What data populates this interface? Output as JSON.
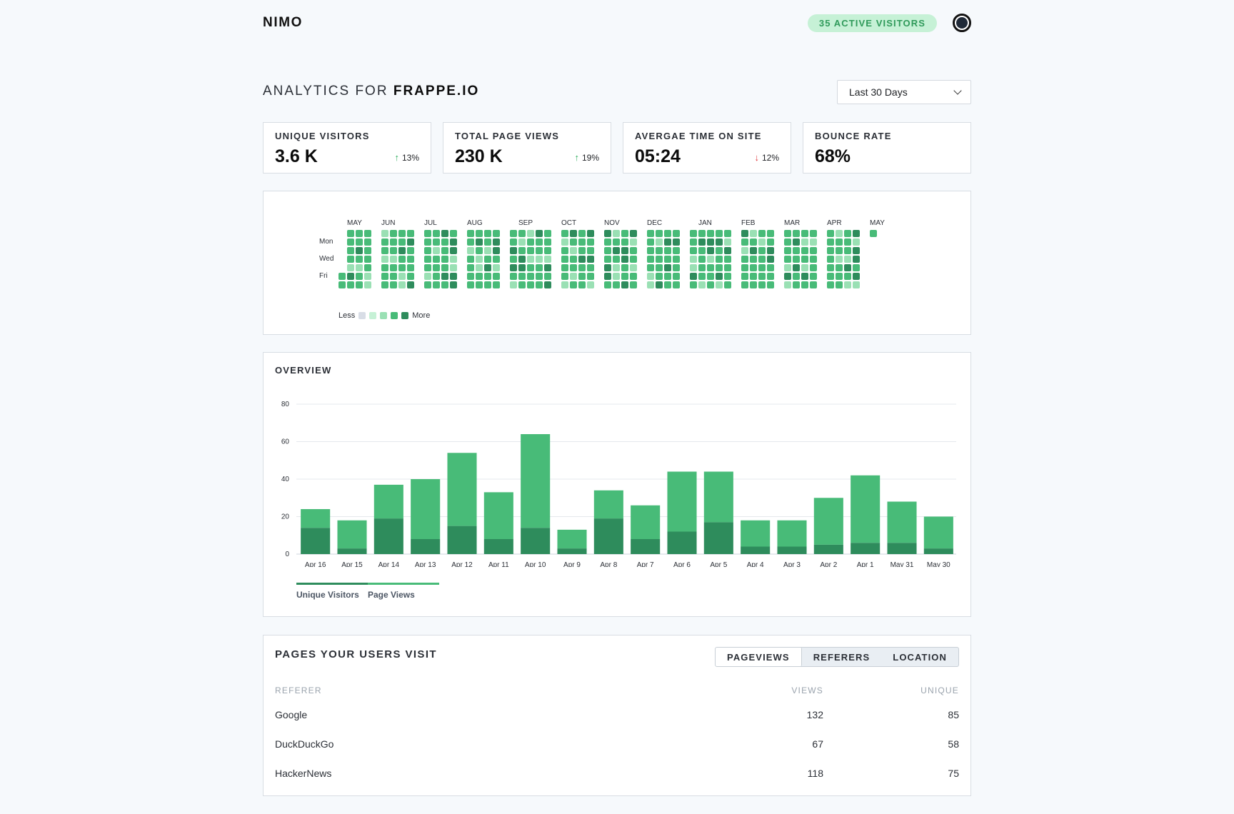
{
  "header": {
    "brand": "NIMO",
    "active_visitors": "35 ACTIVE VISITORS",
    "theme_icon": "circle-toggle-icon"
  },
  "title": {
    "prefix": "ANALYTICS FOR",
    "site": "FRAPPE.IO"
  },
  "range_select": {
    "value": "Last 30 Days",
    "icon": "chevron-down-icon"
  },
  "stats": [
    {
      "label": "UNIQUE VISITORS",
      "value": "3.6 K",
      "change": "13%",
      "direction": "up"
    },
    {
      "label": "TOTAL PAGE VIEWS",
      "value": "230 K",
      "change": "19%",
      "direction": "up"
    },
    {
      "label": "AVERGAE TIME ON SITE",
      "value": "05:24",
      "change": "12%",
      "direction": "down"
    },
    {
      "label": "BOUNCE RATE",
      "value": "68%",
      "change": "",
      "direction": ""
    }
  ],
  "heatmap": {
    "months": [
      "MAY",
      "JUN",
      "JUL",
      "AUG",
      "SEP",
      "OCT",
      "NOV",
      "DEC",
      "JAN",
      "FEB",
      "MAR",
      "APR",
      "MAY"
    ],
    "days": [
      "Mon",
      "Wed",
      "Fri"
    ],
    "legend_less": "Less",
    "legend_more": "More",
    "colors": [
      "#d8dde6",
      "#c6f1d6",
      "#9ae0b4",
      "#48bb78",
      "#2e8c5c"
    ]
  },
  "overview": {
    "title": "OVERVIEW",
    "legend": [
      "Unique Visitors",
      "Page Views"
    ]
  },
  "chart_data": {
    "type": "bar",
    "stacked": true,
    "title": "OVERVIEW",
    "categories": [
      "Apr 16",
      "Apr 15",
      "Apr 14",
      "Apr 13",
      "Apr 12",
      "Apr 11",
      "Apr 10",
      "Apr 9",
      "Apr 8",
      "Apr 7",
      "Apr 6",
      "Apr 5",
      "Apr 4",
      "Apr 3",
      "Apr 2",
      "Apr 1",
      "May 31",
      "May 30"
    ],
    "series": [
      {
        "name": "Unique Visitors",
        "color": "#2e8c5c",
        "values": [
          14,
          3,
          19,
          8,
          15,
          8,
          14,
          3,
          19,
          8,
          12,
          17,
          4,
          4,
          5,
          6,
          6,
          3
        ]
      },
      {
        "name": "Page Views",
        "color": "#48bb78",
        "values": [
          10,
          15,
          18,
          32,
          39,
          25,
          50,
          10,
          15,
          18,
          32,
          27,
          14,
          14,
          25,
          36,
          22,
          17
        ]
      }
    ],
    "yticks": [
      0,
      20,
      40,
      60,
      80
    ],
    "ylim": [
      0,
      80
    ],
    "xlabel": "",
    "ylabel": "",
    "grid": true
  },
  "pages": {
    "title": "PAGES YOUR USERS VISIT",
    "tabs": [
      "PAGEVIEWS",
      "REFERERS",
      "LOCATION"
    ],
    "active_tab": "PAGEVIEWS",
    "columns": [
      "REFERER",
      "VIEWS",
      "UNIQUE"
    ],
    "rows": [
      {
        "name": "Google",
        "views": "132",
        "unique": "85"
      },
      {
        "name": "DuckDuckGo",
        "views": "67",
        "unique": "58"
      },
      {
        "name": "HackerNews",
        "views": "118",
        "unique": "75"
      }
    ]
  }
}
